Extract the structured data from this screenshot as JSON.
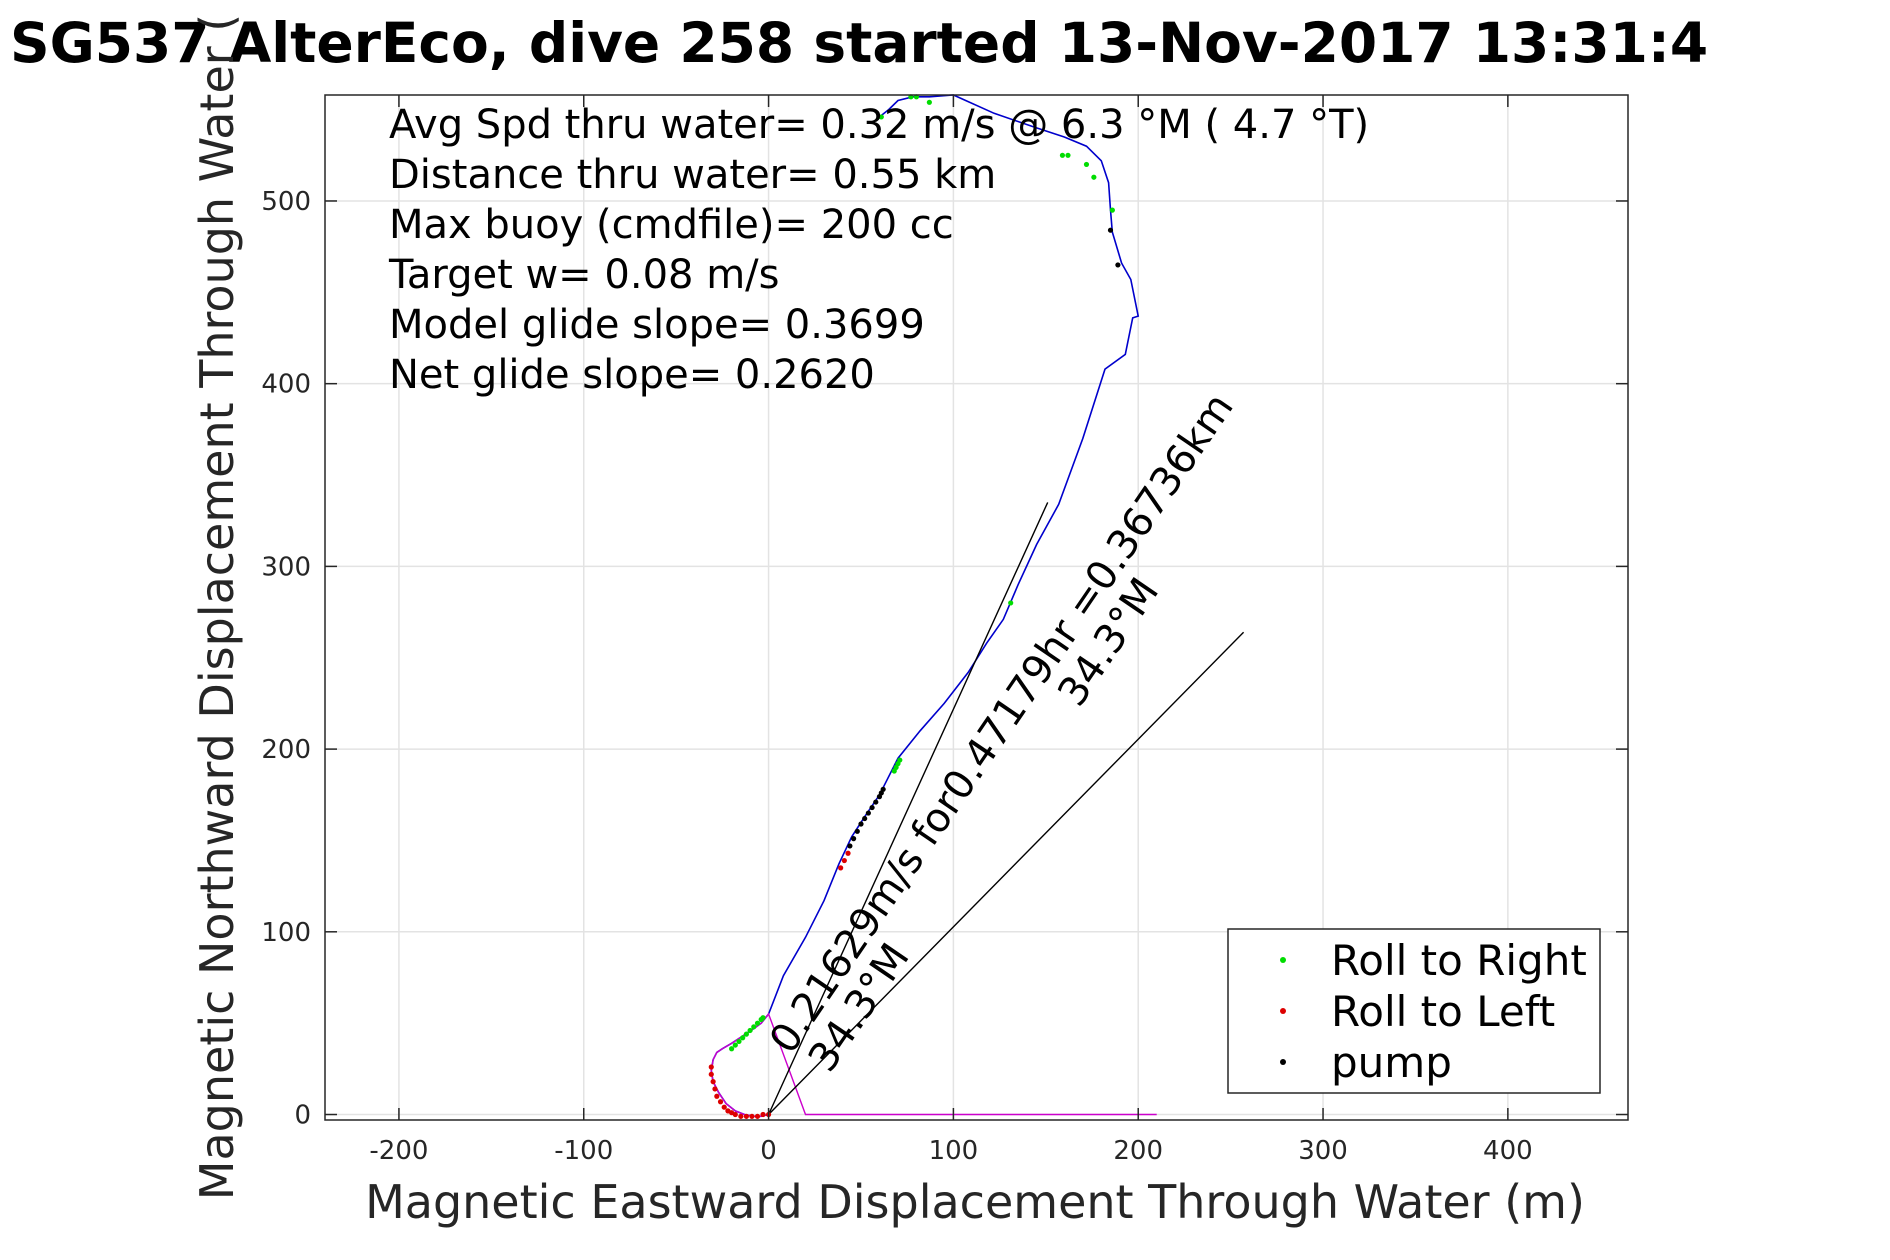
{
  "chart_data": {
    "type": "line",
    "title": "SG537 AlterEco, dive 258 started 13-Nov-2017 13:31:4",
    "xlabel": "Magnetic Eastward Displacement Through Water (m)",
    "ylabel": "Magnetic Northward Displacement Through Water (",
    "xlim": [
      -240,
      465
    ],
    "ylim": [
      -3,
      558
    ],
    "xticks": [
      -200,
      -100,
      0,
      100,
      200,
      300,
      400
    ],
    "yticks": [
      0,
      100,
      200,
      300,
      400,
      500
    ],
    "grid": true,
    "info_lines": [
      "Avg Spd thru water=  0.32 m/s @   6.3 °M (  4.7 °T)",
      "Distance thru water=  0.55 km",
      "Max buoy (cmdfile)= 200 cc",
      "Target w= 0.08 m/s",
      "Model glide slope= 0.3699",
      "Net glide slope= 0.2620"
    ],
    "legend": {
      "placement": "bottom-right",
      "entries": [
        {
          "label": "Roll to Right",
          "color": "#00dd00"
        },
        {
          "label": "Roll to Left",
          "color": "#dd0000"
        },
        {
          "label": "pump",
          "color": "#000000"
        }
      ]
    },
    "annotations": [
      {
        "text": "0.21629m/s for0.47179hr =0.36736km",
        "at": [
          12,
          32
        ],
        "rotation_deg": -55.7
      },
      {
        "text": "34.3°M",
        "at": [
          33,
          22
        ],
        "rotation_deg": -55.7
      },
      {
        "text": "34.3°M",
        "at": [
          168,
          222
        ],
        "rotation_deg": -55.7
      }
    ],
    "series": [
      {
        "style": "blue-line",
        "color": "#0000cc",
        "x": [
          0,
          -4,
          -8,
          -13,
          -18,
          -23,
          -27,
          -30,
          -31,
          -30,
          -28,
          -25,
          -20,
          -14,
          -8,
          -4,
          0,
          8,
          20,
          30,
          38,
          45,
          52,
          60,
          70,
          82,
          95,
          108,
          118,
          127,
          135,
          145,
          157,
          170,
          182,
          193,
          197,
          200,
          196,
          191,
          186,
          185,
          184,
          180,
          172,
          160,
          145,
          122,
          100,
          87,
          78,
          70,
          65,
          60
        ],
        "y": [
          0,
          -1,
          -1,
          0,
          2,
          6,
          12,
          18,
          24,
          30,
          34,
          36,
          39,
          43,
          47,
          50,
          55,
          76,
          97,
          117,
          137,
          152,
          163,
          175,
          195,
          210,
          225,
          242,
          258,
          271,
          290,
          312,
          334,
          370,
          408,
          416,
          436,
          437,
          457,
          466,
          483,
          495,
          510,
          522,
          530,
          535,
          540,
          548,
          558,
          557,
          557,
          555,
          550,
          546
        ]
      },
      {
        "style": "magenta-line",
        "color": "#cc00cc",
        "x": [
          0,
          -4,
          -8,
          -13,
          -18,
          -23,
          -27,
          -30,
          -31,
          -30,
          -28,
          -25,
          -20,
          -14,
          -8,
          -4,
          0,
          20,
          40,
          60,
          80,
          100,
          120,
          140,
          160,
          180,
          200,
          210
        ],
        "y": [
          0,
          -1,
          -1,
          0,
          2,
          6,
          12,
          18,
          24,
          30,
          34,
          36,
          39,
          43,
          47,
          50,
          55,
          0,
          0,
          0,
          0,
          0,
          0,
          0,
          0,
          0,
          0,
          0
        ]
      },
      {
        "style": "black-line",
        "color": "#000000",
        "x": [
          0,
          151
        ],
        "y": [
          0,
          335
        ]
      },
      {
        "style": "black-line",
        "color": "#000000",
        "x": [
          0,
          257
        ],
        "y": [
          0,
          264
        ]
      },
      {
        "style": "markers",
        "label": "Roll to Right",
        "color": "#00dd00",
        "x": [
          -20,
          -18,
          -16,
          -14,
          -12,
          -10,
          -8,
          -6,
          -4,
          -3,
          68,
          69,
          70,
          71,
          131,
          159,
          162,
          172,
          176,
          186,
          61,
          77,
          80,
          87
        ],
        "y": [
          36,
          38,
          40,
          42,
          44,
          46,
          48,
          50,
          52,
          53,
          188,
          190,
          192,
          194,
          280,
          525,
          525,
          520,
          513,
          495,
          546,
          557,
          557,
          554
        ]
      },
      {
        "style": "markers",
        "label": "Roll to Left",
        "color": "#dd0000",
        "x": [
          -31,
          -31,
          -30,
          -29,
          -28,
          -26,
          -24,
          -22,
          -20,
          -18,
          -15,
          -12,
          -9,
          -6,
          -3,
          0,
          39,
          41,
          43
        ],
        "y": [
          26,
          22,
          18,
          14,
          10,
          7,
          4,
          2,
          1,
          0,
          -1,
          -1,
          -1,
          -1,
          0,
          0,
          135,
          139,
          143
        ]
      },
      {
        "style": "markers",
        "label": "pump",
        "color": "#000000",
        "x": [
          44,
          46,
          48,
          50,
          52,
          54,
          56,
          58,
          60,
          61,
          62,
          185,
          189
        ],
        "y": [
          147,
          151,
          155,
          159,
          162,
          165,
          168,
          171,
          174,
          176,
          178,
          484,
          465
        ]
      }
    ]
  }
}
